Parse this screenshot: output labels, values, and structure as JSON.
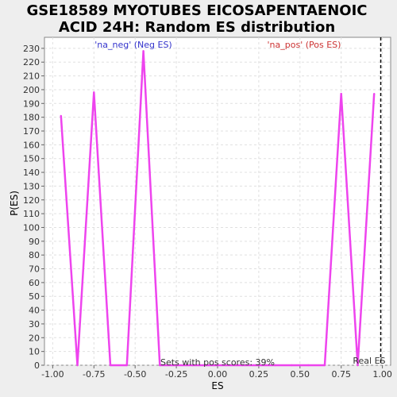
{
  "chart_data": {
    "type": "line",
    "title_lines": [
      "GSE18589 MYOTUBES EICOSAPENTAENOIC",
      "ACID 24H: Random ES distribution"
    ],
    "xlabel": "ES",
    "ylabel": "P(ES)",
    "xlim": [
      -1.05,
      1.05
    ],
    "ylim": [
      0,
      238
    ],
    "x_ticks": [
      -1.0,
      -0.75,
      -0.5,
      -0.25,
      0.0,
      0.25,
      0.5,
      0.75,
      1.0
    ],
    "x_tick_labels": [
      "-1.00",
      "-0.75",
      "-0.50",
      "-0.25",
      "0.00",
      "0.25",
      "0.50",
      "0.75",
      "1.00"
    ],
    "y_ticks": [
      0,
      10,
      20,
      30,
      40,
      50,
      60,
      70,
      80,
      90,
      100,
      110,
      120,
      130,
      140,
      150,
      160,
      170,
      180,
      190,
      200,
      210,
      220,
      230
    ],
    "grid": true,
    "series": [
      {
        "color": "#ee44ee",
        "x": [
          -0.95,
          -0.85,
          -0.75,
          -0.65,
          -0.55,
          -0.45,
          -0.35,
          -0.25,
          -0.15,
          -0.05,
          0.05,
          0.15,
          0.25,
          0.35,
          0.45,
          0.55,
          0.65,
          0.75,
          0.85,
          0.95
        ],
        "y": [
          181,
          0,
          198,
          0,
          0,
          228,
          0,
          0,
          0,
          0,
          0,
          0,
          0,
          0,
          0,
          0,
          0,
          197,
          0,
          197
        ]
      }
    ],
    "real_es": {
      "x": 0.99,
      "label": "Real ES"
    },
    "annotations": {
      "neg": {
        "text": "'na_neg' (Neg ES)",
        "color": "#3333cc"
      },
      "pos": {
        "text": "'na_pos' (Pos ES)",
        "color": "#cc3333"
      },
      "footer": {
        "text": "Sets with pos scores: 39%"
      }
    }
  }
}
